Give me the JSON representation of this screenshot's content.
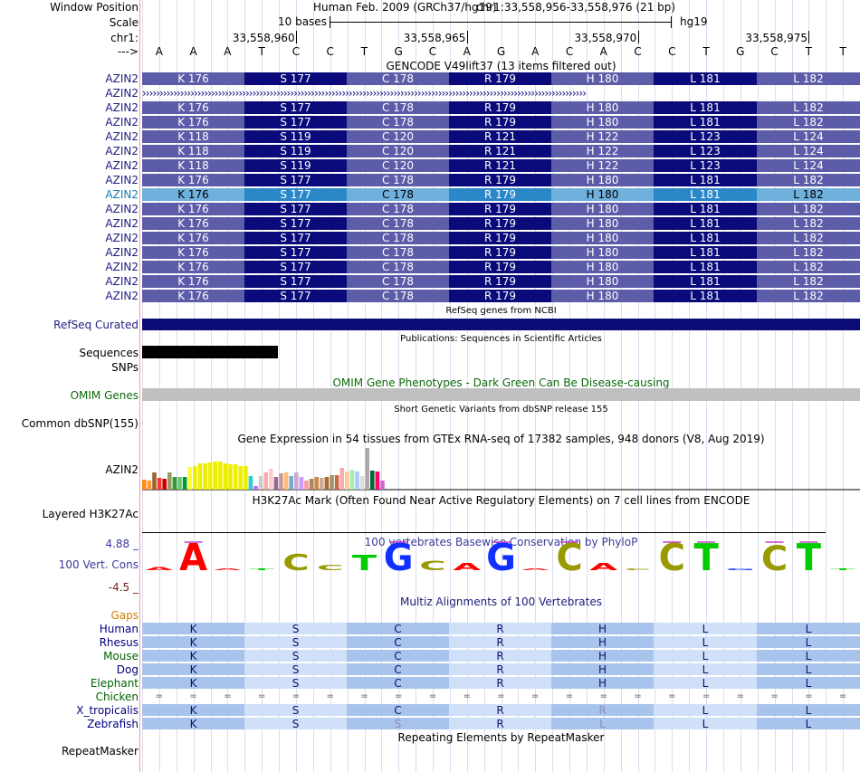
{
  "ruler": {
    "window_label": "Window Position",
    "scale_label": "Scale",
    "chrom_label": "chr1:",
    "arrow_label": "--->",
    "assembly_text": "Human Feb. 2009 (GRCh37/hg19)",
    "position_text": "chr1:33,558,956-33,558,976 (21 bp)",
    "scale_text": "10 bases",
    "scale_db": "hg19",
    "coords": [
      "33,558,960",
      "33,558,965",
      "33,558,970",
      "33,558,975"
    ],
    "bases": [
      "A",
      "A",
      "A",
      "T",
      "C",
      "C",
      "T",
      "G",
      "C",
      "A",
      "G",
      "A",
      "C",
      "A",
      "C",
      "C",
      "T",
      "G",
      "C",
      "T",
      "T"
    ]
  },
  "gencode": {
    "title": "GENCODE V49lift37 (13 items filtered out)",
    "rows": [
      {
        "name": "AZIN2",
        "kind": "aa",
        "variant": "dark",
        "aas": [
          "K 176",
          "S 177",
          "C 178",
          "R 179",
          "H 180",
          "L 181",
          "L 182"
        ]
      },
      {
        "name": "AZIN2",
        "kind": "intron",
        "arrow": "›››››››››››››››››››››››››››››››››››››››››››››››››››››››››››››››››››››››››››››››››››››››››››››››››››››››››››››››››››››››››››››››››"
      },
      {
        "name": "AZIN2",
        "kind": "aa",
        "variant": "dark",
        "aas": [
          "K 176",
          "S 177",
          "C 178",
          "R 179",
          "H 180",
          "L 181",
          "L 182"
        ]
      },
      {
        "name": "AZIN2",
        "kind": "aa",
        "variant": "dark",
        "aas": [
          "K 176",
          "S 177",
          "C 178",
          "R 179",
          "H 180",
          "L 181",
          "L 182"
        ]
      },
      {
        "name": "AZIN2",
        "kind": "aa",
        "variant": "dark",
        "aas": [
          "K 118",
          "S 119",
          "C 120",
          "R 121",
          "H 122",
          "L 123",
          "L 124"
        ]
      },
      {
        "name": "AZIN2",
        "kind": "aa",
        "variant": "dark",
        "aas": [
          "K 118",
          "S 119",
          "C 120",
          "R 121",
          "H 122",
          "L 123",
          "L 124"
        ]
      },
      {
        "name": "AZIN2",
        "kind": "aa",
        "variant": "dark",
        "aas": [
          "K 118",
          "S 119",
          "C 120",
          "R 121",
          "H 122",
          "L 123",
          "L 124"
        ]
      },
      {
        "name": "AZIN2",
        "kind": "aa",
        "variant": "dark",
        "aas": [
          "K 176",
          "S 177",
          "C 178",
          "R 179",
          "H 180",
          "L 181",
          "L 182"
        ]
      },
      {
        "name": "AZIN2",
        "kind": "aa",
        "variant": "light",
        "aas": [
          "K 176",
          "S 177",
          "C 178",
          "R 179",
          "H 180",
          "L 181",
          "L 182"
        ]
      },
      {
        "name": "AZIN2",
        "kind": "aa",
        "variant": "dark",
        "aas": [
          "K 176",
          "S 177",
          "C 178",
          "R 179",
          "H 180",
          "L 181",
          "L 182"
        ]
      },
      {
        "name": "AZIN2",
        "kind": "aa",
        "variant": "dark",
        "aas": [
          "K 176",
          "S 177",
          "C 178",
          "R 179",
          "H 180",
          "L 181",
          "L 182"
        ]
      },
      {
        "name": "AZIN2",
        "kind": "aa",
        "variant": "dark",
        "aas": [
          "K 176",
          "S 177",
          "C 178",
          "R 179",
          "H 180",
          "L 181",
          "L 182"
        ]
      },
      {
        "name": "AZIN2",
        "kind": "aa",
        "variant": "dark",
        "aas": [
          "K 176",
          "S 177",
          "C 178",
          "R 179",
          "H 180",
          "L 181",
          "L 182"
        ]
      },
      {
        "name": "AZIN2",
        "kind": "aa",
        "variant": "dark",
        "aas": [
          "K 176",
          "S 177",
          "C 178",
          "R 179",
          "H 180",
          "L 181",
          "L 182"
        ]
      },
      {
        "name": "AZIN2",
        "kind": "aa",
        "variant": "dark",
        "aas": [
          "K 176",
          "S 177",
          "C 178",
          "R 179",
          "H 180",
          "L 181",
          "L 182"
        ]
      },
      {
        "name": "AZIN2",
        "kind": "aa",
        "variant": "dark",
        "aas": [
          "K 176",
          "S 177",
          "C 178",
          "R 179",
          "H 180",
          "L 181",
          "L 182"
        ]
      }
    ]
  },
  "refseq": {
    "title": "RefSeq genes from NCBI",
    "label": "RefSeq Curated"
  },
  "pubs": {
    "title": "Publications: Sequences in Scientific Articles",
    "seq_label": "Sequences",
    "snp_label": "SNPs"
  },
  "omim": {
    "title": "OMIM Gene Phenotypes - Dark Green Can Be Disease-causing",
    "label": "OMIM Genes"
  },
  "dbsnp": {
    "title": "Short Genetic Variants from dbSNP release 155",
    "label": "Common dbSNP(155)"
  },
  "gtex": {
    "title": "Gene Expression in 54 tissues from GTEx RNA-seq of 17382 samples, 948 donors (V8, Aug 2019)",
    "label": "AZIN2",
    "bars": [
      {
        "v": 0.22,
        "c": "#ff8c1a"
      },
      {
        "v": 0.2,
        "c": "#ff9933"
      },
      {
        "v": 0.4,
        "c": "#996633"
      },
      {
        "v": 0.28,
        "c": "#ff3333"
      },
      {
        "v": 0.26,
        "c": "#cc0000"
      },
      {
        "v": 0.4,
        "c": "#999966"
      },
      {
        "v": 0.3,
        "c": "#339933"
      },
      {
        "v": 0.3,
        "c": "#66cc66"
      },
      {
        "v": 0.3,
        "c": "#009933"
      },
      {
        "v": 0.52,
        "c": "#ffff33"
      },
      {
        "v": 0.55,
        "c": "#eeee00"
      },
      {
        "v": 0.6,
        "c": "#eeee00"
      },
      {
        "v": 0.6,
        "c": "#eeee00"
      },
      {
        "v": 0.62,
        "c": "#eeee00"
      },
      {
        "v": 0.64,
        "c": "#eeee00"
      },
      {
        "v": 0.64,
        "c": "#eeee00"
      },
      {
        "v": 0.6,
        "c": "#eeee00"
      },
      {
        "v": 0.58,
        "c": "#eeee00"
      },
      {
        "v": 0.58,
        "c": "#eeee00"
      },
      {
        "v": 0.55,
        "c": "#eeee00"
      },
      {
        "v": 0.55,
        "c": "#eeee00"
      },
      {
        "v": 0.32,
        "c": "#33cccc"
      },
      {
        "v": 0.08,
        "c": "#cc66ff"
      },
      {
        "v": 0.32,
        "c": "#cccccc"
      },
      {
        "v": 0.4,
        "c": "#ffaaaa"
      },
      {
        "v": 0.48,
        "c": "#ffcccc"
      },
      {
        "v": 0.3,
        "c": "#996699"
      },
      {
        "v": 0.38,
        "c": "#cc9999"
      },
      {
        "v": 0.4,
        "c": "#ffbb77"
      },
      {
        "v": 0.32,
        "c": "#77aacc"
      },
      {
        "v": 0.4,
        "c": "#ccaacc"
      },
      {
        "v": 0.3,
        "c": "#cc99ff"
      },
      {
        "v": 0.2,
        "c": "#ff9999"
      },
      {
        "v": 0.26,
        "c": "#aa8866"
      },
      {
        "v": 0.3,
        "c": "#cc8844"
      },
      {
        "v": 0.28,
        "c": "#ccaa99"
      },
      {
        "v": 0.3,
        "c": "#aa6633"
      },
      {
        "v": 0.34,
        "c": "#999966"
      },
      {
        "v": 0.34,
        "c": "#cc6644"
      },
      {
        "v": 0.5,
        "c": "#ffaaaa"
      },
      {
        "v": 0.42,
        "c": "#ffcc99"
      },
      {
        "v": 0.46,
        "c": "#aaeeaa"
      },
      {
        "v": 0.42,
        "c": "#aaccff"
      },
      {
        "v": 0.32,
        "c": "#dddddd"
      },
      {
        "v": 0.95,
        "c": "#aaaaaa"
      },
      {
        "v": 0.44,
        "c": "#006633"
      },
      {
        "v": 0.42,
        "c": "#ff0066"
      },
      {
        "v": 0.2,
        "c": "#cc66cc"
      }
    ]
  },
  "h3k27ac": {
    "title": "H3K27Ac Mark (Often Found Near Active Regulatory Elements) on 7 cell lines from ENCODE",
    "label": "Layered H3K27Ac"
  },
  "phylop": {
    "title": "100 vertebrates Basewise Conservation by PhyloP",
    "label": "100 Vert. Cons",
    "ymax": "4.88 _",
    "ymin": "-4.5 _",
    "letters": [
      {
        "b": "A",
        "c": "#ff0000",
        "h": 0.1
      },
      {
        "b": "A",
        "c": "#ff0000",
        "h": 1.0
      },
      {
        "b": "A",
        "c": "#ff0000",
        "h": 0.02
      },
      {
        "b": "T",
        "c": "#00cc00",
        "h": 0.05
      },
      {
        "b": "C",
        "c": "#999900",
        "h": 0.6
      },
      {
        "b": "C",
        "c": "#999900",
        "h": 0.2
      },
      {
        "b": "T",
        "c": "#00cc00",
        "h": 0.55
      },
      {
        "b": "G",
        "c": "#1030ff",
        "h": 1.0
      },
      {
        "b": "C",
        "c": "#999900",
        "h": 0.35
      },
      {
        "b": "A",
        "c": "#ff0000",
        "h": 0.25
      },
      {
        "b": "G",
        "c": "#1030ff",
        "h": 1.0
      },
      {
        "b": "A",
        "c": "#ff0000",
        "h": 0.02
      },
      {
        "b": "C",
        "c": "#999900",
        "h": 1.0
      },
      {
        "b": "A",
        "c": "#ff0000",
        "h": 0.25
      },
      {
        "b": "C",
        "c": "#999900",
        "h": 0.02
      },
      {
        "b": "C",
        "c": "#999900",
        "h": 1.0
      },
      {
        "b": "T",
        "c": "#00cc00",
        "h": 1.0
      },
      {
        "b": "G",
        "c": "#1030ff",
        "h": 0.02
      },
      {
        "b": "C",
        "c": "#999900",
        "h": 0.9
      },
      {
        "b": "T",
        "c": "#00cc00",
        "h": 1.0
      },
      {
        "b": "T",
        "c": "#00cc00",
        "h": 0.05
      }
    ]
  },
  "multiz": {
    "title": "Multiz Alignments of 100 Vertebrates",
    "gaps_label": "Gaps",
    "species": [
      {
        "name": "Human",
        "color": "#000080",
        "mode": "aa",
        "aas": [
          "K",
          "S",
          "C",
          "R",
          "H",
          "L",
          "L"
        ]
      },
      {
        "name": "Rhesus",
        "color": "#000080",
        "mode": "aa",
        "aas": [
          "K",
          "S",
          "C",
          "R",
          "H",
          "L",
          "L"
        ]
      },
      {
        "name": "Mouse",
        "color": "#006400",
        "mode": "aa",
        "aas": [
          "K",
          "S",
          "C",
          "R",
          "H",
          "L",
          "L"
        ]
      },
      {
        "name": "Dog",
        "color": "#000080",
        "mode": "aa",
        "aas": [
          "K",
          "S",
          "C",
          "R",
          "H",
          "L",
          "L"
        ]
      },
      {
        "name": "Elephant",
        "color": "#006400",
        "mode": "aa",
        "aas": [
          "K",
          "S",
          "C",
          "R",
          "H",
          "L",
          "L"
        ]
      },
      {
        "name": "Chicken",
        "color": "#006400",
        "mode": "eq",
        "eq": "="
      },
      {
        "name": "X_tropicalis",
        "color": "#000080",
        "mode": "aa",
        "aas": [
          "K",
          "S",
          "C",
          "R",
          "R",
          "L",
          "L"
        ],
        "faded": [
          4
        ]
      },
      {
        "name": "Zebrafish",
        "color": "#000080",
        "mode": "aa",
        "aas": [
          "K",
          "S",
          "S",
          "R",
          "L",
          "L",
          "L"
        ],
        "faded": [
          2,
          4
        ]
      }
    ]
  },
  "repeat": {
    "title": "Repeating Elements by RepeatMasker",
    "label": "RepeatMasker"
  }
}
